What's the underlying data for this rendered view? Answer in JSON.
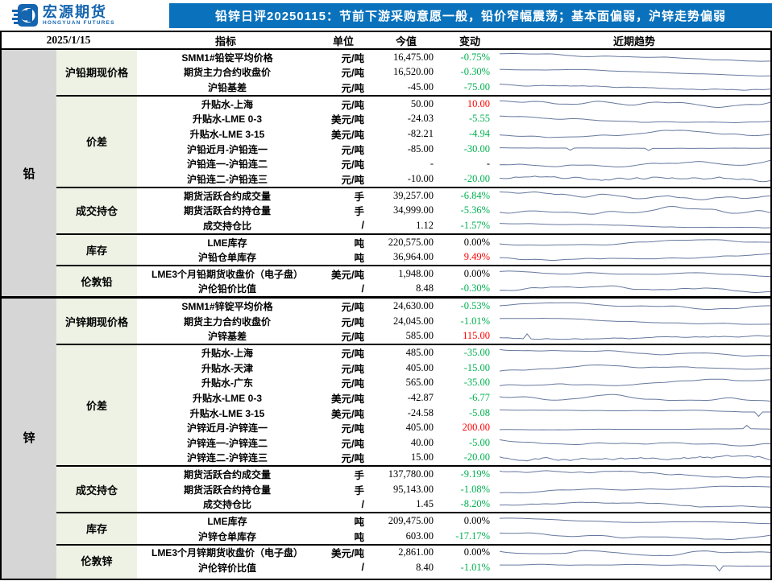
{
  "brand": {
    "name_cn": "宏源期货",
    "name_en": "HONGYUAN FUTURES"
  },
  "title": "铅锌日评20250115：节前下游采购意愿一般，铅价窄幅震荡；基本面偏弱，沪锌走势偏弱",
  "date": "2025/1/15",
  "columns": {
    "indicator": "指标",
    "unit": "单位",
    "value": "今值",
    "change": "变动",
    "trend": "近期趋势"
  },
  "colors": {
    "header_blue": "#0a72bc",
    "metal_col_bg": "#d6d6d6",
    "group_col_bg": "#edf2e4",
    "change_green": "#00b050",
    "change_red": "#ff0000",
    "spark_line": "#66789e"
  },
  "sections": [
    {
      "metal": "铅",
      "groups": [
        {
          "name": "沪铅期现价格",
          "rows": [
            {
              "indicator": "SMM1#铅锭平均价格",
              "unit": "元/吨",
              "value": "16,475.00",
              "change": "-0.75%",
              "change_color": "green",
              "spark": {
                "seed": 11,
                "smooth": 4,
                "trend": -0.6,
                "amp": 0.7
              }
            },
            {
              "indicator": "期货主力合约收盘价",
              "unit": "元/吨",
              "value": "16,520.00",
              "change": "-0.30%",
              "change_color": "green",
              "spark": {
                "seed": 12,
                "smooth": 4,
                "trend": -0.5,
                "amp": 0.6
              }
            },
            {
              "indicator": "沪铅基差",
              "unit": "元/吨",
              "value": "-45.00",
              "change": "-75.00",
              "change_color": "green",
              "spark": {
                "seed": 13,
                "smooth": 0,
                "trend": 0,
                "amp": 0.55
              }
            }
          ]
        },
        {
          "name": "价差",
          "rows": [
            {
              "indicator": "升贴水-上海",
              "unit": "元/吨",
              "value": "50.00",
              "change": "10.00",
              "change_color": "red",
              "spark": {
                "seed": 14,
                "smooth": 3,
                "trend": 0.3,
                "amp": 0.6
              }
            },
            {
              "indicator": "升贴水-LME 0-3",
              "unit": "美元/吨",
              "value": "-24.03",
              "change": "-5.55",
              "change_color": "green",
              "spark": {
                "seed": 15,
                "smooth": 3,
                "trend": -0.2,
                "amp": 0.6
              }
            },
            {
              "indicator": "升贴水-LME 3-15",
              "unit": "美元/吨",
              "value": "-82.21",
              "change": "-4.94",
              "change_color": "green",
              "spark": {
                "seed": 16,
                "smooth": 3,
                "trend": 0.1,
                "amp": 0.65
              }
            },
            {
              "indicator": "沪铅近月-沪铅连一",
              "unit": "元/吨",
              "value": "-85.00",
              "change": "-30.00",
              "change_color": "green",
              "spark": {
                "seed": 17,
                "smooth": 1,
                "trend": 0,
                "amp": 0.25,
                "spikes": [
                  [
                    0.27,
                    -3
                  ],
                  [
                    0.55,
                    -3
                  ]
                ]
              }
            },
            {
              "indicator": "沪铅连一-沪铅连二",
              "unit": "元/吨",
              "value": "-",
              "change": "-",
              "change_color": "black",
              "spark": {
                "seed": 18,
                "smooth": 2,
                "trend": 0,
                "amp": 0.6
              }
            },
            {
              "indicator": "沪铅连二-沪铅连三",
              "unit": "元/吨",
              "value": "-10.00",
              "change": "-20.00",
              "change_color": "green",
              "spark": {
                "seed": 19,
                "smooth": 0,
                "trend": 0.1,
                "amp": 0.5
              }
            }
          ]
        },
        {
          "name": "成交持仓",
          "rows": [
            {
              "indicator": "期货活跃合约成交量",
              "unit": "手",
              "value": "39,257.00",
              "change": "-6.84%",
              "change_color": "green",
              "spark": {
                "seed": 20,
                "smooth": 1,
                "trend": -0.2,
                "amp": 0.7
              }
            },
            {
              "indicator": "期货活跃合约持仓量",
              "unit": "手",
              "value": "34,999.00",
              "change": "-5.36%",
              "change_color": "green",
              "spark": {
                "seed": 21,
                "smooth": 3,
                "trend": 0.2,
                "amp": 0.7
              }
            },
            {
              "indicator": "成交持仓比",
              "unit": "/",
              "value": "1.12",
              "change": "-1.57%",
              "change_color": "green",
              "spark": {
                "seed": 22,
                "smooth": 1,
                "trend": 0,
                "amp": 0.4
              }
            }
          ]
        },
        {
          "name": "库存",
          "rows": [
            {
              "indicator": "LME库存",
              "unit": "吨",
              "value": "220,575.00",
              "change": "0.00%",
              "change_color": "black",
              "spark": {
                "seed": 23,
                "smooth": 4,
                "trend": -0.1,
                "amp": 0.5
              }
            },
            {
              "indicator": "沪铅仓单库存",
              "unit": "吨",
              "value": "36,964.00",
              "change": "9.49%",
              "change_color": "red",
              "spark": {
                "seed": 24,
                "smooth": 3,
                "trend": -0.5,
                "amp": 0.6
              }
            }
          ]
        },
        {
          "name": "伦敦铅",
          "rows": [
            {
              "indicator": "LME3个月铅期货收盘价（电子盘）",
              "unit": "美元/吨",
              "value": "1,948.00",
              "change": "0.00%",
              "change_color": "black",
              "spark": {
                "seed": 25,
                "smooth": 3,
                "trend": -0.2,
                "amp": 0.5
              }
            },
            {
              "indicator": "沪伦铅价比值",
              "unit": "/",
              "value": "8.48",
              "change": "-0.30%",
              "change_color": "green",
              "spark": {
                "seed": 26,
                "smooth": 2,
                "trend": -0.3,
                "amp": 0.6
              }
            }
          ]
        }
      ]
    },
    {
      "metal": "锌",
      "groups": [
        {
          "name": "沪锌期现价格",
          "rows": [
            {
              "indicator": "SMM1#锌锭平均价格",
              "unit": "元/吨",
              "value": "24,630.00",
              "change": "-0.53%",
              "change_color": "green",
              "spark": {
                "seed": 41,
                "smooth": 4,
                "trend": 0.3,
                "amp": 0.6
              }
            },
            {
              "indicator": "期货主力合约收盘价",
              "unit": "元/吨",
              "value": "24,045.00",
              "change": "-1.01%",
              "change_color": "green",
              "spark": {
                "seed": 42,
                "smooth": 4,
                "trend": -0.3,
                "amp": 0.55
              }
            },
            {
              "indicator": "沪锌基差",
              "unit": "元/吨",
              "value": "585.00",
              "change": "115.00",
              "change_color": "red",
              "spark": {
                "seed": 43,
                "smooth": 0,
                "trend": 0,
                "amp": 0.5,
                "spikes": [
                  [
                    0.1,
                    2
                  ]
                ]
              }
            }
          ]
        },
        {
          "name": "价差",
          "rows": [
            {
              "indicator": "升贴水-上海",
              "unit": "元/吨",
              "value": "485.00",
              "change": "-35.00",
              "change_color": "green",
              "spark": {
                "seed": 44,
                "smooth": 3,
                "trend": -0.4,
                "amp": 0.6
              }
            },
            {
              "indicator": "升贴水-天津",
              "unit": "元/吨",
              "value": "405.00",
              "change": "-15.00",
              "change_color": "green",
              "spark": {
                "seed": 45,
                "smooth": 3,
                "trend": 0.3,
                "amp": 0.55
              }
            },
            {
              "indicator": "升贴水-广东",
              "unit": "元/吨",
              "value": "565.00",
              "change": "-35.00",
              "change_color": "green",
              "spark": {
                "seed": 46,
                "smooth": 3,
                "trend": 0.1,
                "amp": 0.6
              }
            },
            {
              "indicator": "升贴水-LME 0-3",
              "unit": "美元/吨",
              "value": "-42.87",
              "change": "-6.77",
              "change_color": "green",
              "spark": {
                "seed": 47,
                "smooth": 4,
                "trend": 0.4,
                "amp": 0.6
              }
            },
            {
              "indicator": "升贴水-LME 3-15",
              "unit": "美元/吨",
              "value": "-24.58",
              "change": "-5.08",
              "change_color": "green",
              "spark": {
                "seed": 48,
                "smooth": 3,
                "trend": 0.3,
                "amp": 0.6,
                "spikes": [
                  [
                    0.95,
                    -1.5
                  ]
                ]
              }
            },
            {
              "indicator": "沪锌近月-沪锌连一",
              "unit": "元/吨",
              "value": "405.00",
              "change": "200.00",
              "change_color": "red",
              "spark": {
                "seed": 49,
                "smooth": 2,
                "trend": 0.2,
                "amp": 0.4,
                "spikes": [
                  [
                    0.9,
                    2.5
                  ]
                ]
              }
            },
            {
              "indicator": "沪锌连一-沪锌连二",
              "unit": "元/吨",
              "value": "40.00",
              "change": "-5.00",
              "change_color": "green",
              "spark": {
                "seed": 50,
                "smooth": 2,
                "trend": 0,
                "amp": 0.55
              }
            },
            {
              "indicator": "沪锌连二-沪锌连三",
              "unit": "元/吨",
              "value": "15.00",
              "change": "-20.00",
              "change_color": "green",
              "spark": {
                "seed": 51,
                "smooth": 0,
                "trend": 0,
                "amp": 0.5
              }
            }
          ]
        },
        {
          "name": "成交持仓",
          "rows": [
            {
              "indicator": "期货活跃合约成交量",
              "unit": "手",
              "value": "137,780.00",
              "change": "-9.19%",
              "change_color": "green",
              "spark": {
                "seed": 52,
                "smooth": 1,
                "trend": -0.2,
                "amp": 0.65
              }
            },
            {
              "indicator": "期货活跃合约持仓量",
              "unit": "手",
              "value": "95,143.00",
              "change": "-1.08%",
              "change_color": "green",
              "spark": {
                "seed": 53,
                "smooth": 3,
                "trend": 0.2,
                "amp": 0.6
              }
            },
            {
              "indicator": "成交持仓比",
              "unit": "/",
              "value": "1.45",
              "change": "-8.20%",
              "change_color": "green",
              "spark": {
                "seed": 54,
                "smooth": 1,
                "trend": 0,
                "amp": 0.45
              }
            }
          ]
        },
        {
          "name": "库存",
          "rows": [
            {
              "indicator": "LME库存",
              "unit": "吨",
              "value": "209,475.00",
              "change": "0.00%",
              "change_color": "black",
              "spark": {
                "seed": 55,
                "smooth": 4,
                "trend": -0.3,
                "amp": 0.5
              }
            },
            {
              "indicator": "沪锌仓单库存",
              "unit": "吨",
              "value": "603.00",
              "change": "-17.17%",
              "change_color": "green",
              "spark": {
                "seed": 56,
                "smooth": 3,
                "trend": -0.5,
                "amp": 0.6
              }
            }
          ]
        },
        {
          "name": "伦敦锌",
          "rows": [
            {
              "indicator": "LME3个月锌期货收盘价（电子盘）",
              "unit": "美元/吨",
              "value": "2,861.00",
              "change": "0.00%",
              "change_color": "black",
              "spark": {
                "seed": 57,
                "smooth": 4,
                "trend": 0.1,
                "amp": 0.45
              }
            },
            {
              "indicator": "沪伦锌价比值",
              "unit": "/",
              "value": "8.40",
              "change": "-1.01%",
              "change_color": "green",
              "spark": {
                "seed": 58,
                "smooth": 2,
                "trend": -0.2,
                "amp": 0.6,
                "spikes": [
                  [
                    0.8,
                    -2
                  ]
                ]
              }
            }
          ]
        }
      ]
    }
  ]
}
